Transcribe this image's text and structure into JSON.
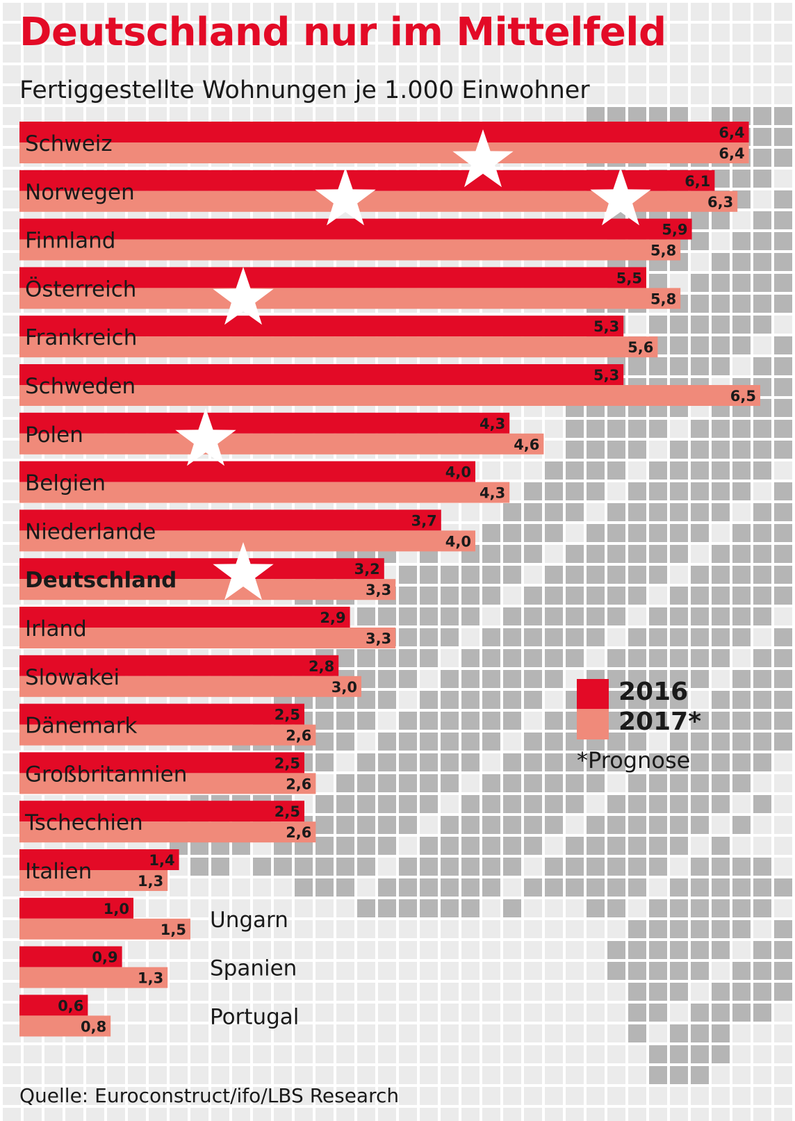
{
  "colors": {
    "series_2016": "#e30a26",
    "series_2017": "#f08a7a",
    "grid_tile_dark": "#b5b5b5",
    "grid_tile_light": "#ebebeb",
    "title": "#e30a26"
  },
  "chart_data": {
    "type": "bar",
    "orientation": "horizontal",
    "title": "Deutschland nur im Mittelfeld",
    "subtitle": "Fertiggestellte Wohnungen je 1.000 Einwohner",
    "categories": [
      "Schweiz",
      "Norwegen",
      "Finnland",
      "Österreich",
      "Frankreich",
      "Schweden",
      "Polen",
      "Belgien",
      "Niederlande",
      "Deutschland",
      "Irland",
      "Slowakei",
      "Dänemark",
      "Großbritannien",
      "Tschechien",
      "Italien",
      "Ungarn",
      "Spanien",
      "Portugal"
    ],
    "highlight_category": "Deutschland",
    "series": [
      {
        "name": "2016",
        "values": [
          6.4,
          6.1,
          5.9,
          5.5,
          5.3,
          5.3,
          4.3,
          4.0,
          3.7,
          3.2,
          2.9,
          2.8,
          2.5,
          2.5,
          2.5,
          1.4,
          1.0,
          0.9,
          0.6
        ],
        "labels": [
          "6,4",
          "6,1",
          "5,9",
          "5,5",
          "5,3",
          "5,3",
          "4,3",
          "4,0",
          "3,7",
          "3,2",
          "2,9",
          "2,8",
          "2,5",
          "2,5",
          "2,5",
          "1,4",
          "1,0",
          "0,9",
          "0,6"
        ]
      },
      {
        "name": "2017*",
        "values": [
          6.4,
          6.3,
          5.8,
          5.8,
          5.6,
          6.5,
          4.6,
          4.3,
          4.0,
          3.3,
          3.3,
          3.0,
          2.6,
          2.6,
          2.6,
          1.3,
          1.5,
          1.3,
          0.8
        ],
        "labels": [
          "6,4",
          "6,3",
          "5,8",
          "5,8",
          "5,6",
          "6,5",
          "4,6",
          "4,3",
          "4,0",
          "3,3",
          "3,3",
          "3,0",
          "2,6",
          "2,6",
          "2,6",
          "1,3",
          "1,5",
          "1,3",
          "0,8"
        ]
      }
    ],
    "xlim": [
      0,
      6.5
    ],
    "grid": false,
    "legend_position": "right",
    "legend": [
      "2016",
      "2017*"
    ],
    "legend_note": "*Prognose",
    "source": "Quelle: Euroconstruct/ifo/LBS Research"
  }
}
